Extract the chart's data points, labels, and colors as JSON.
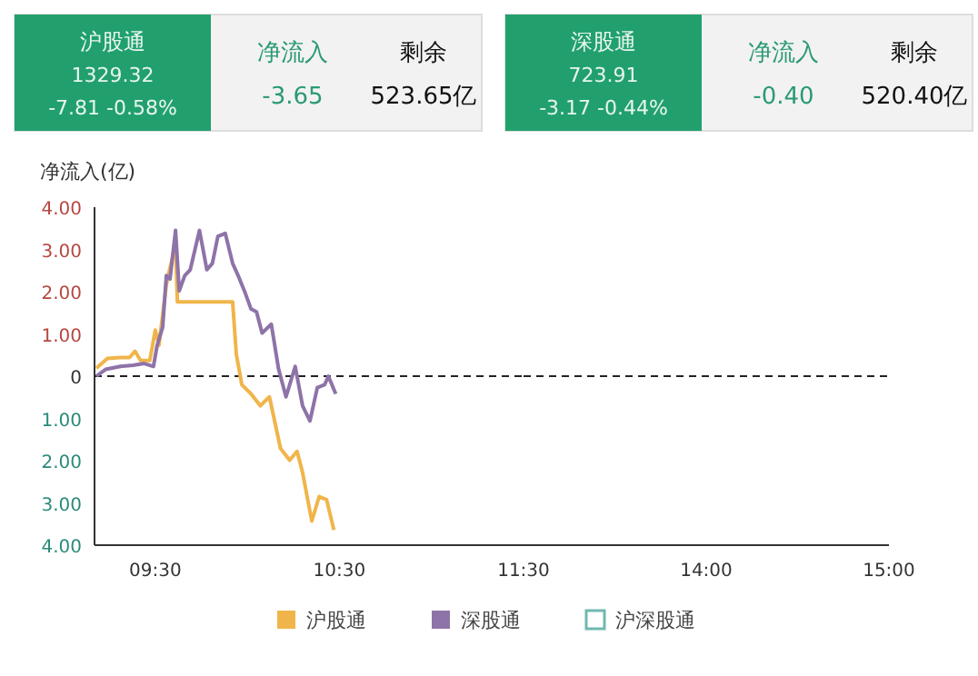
{
  "chart_data": [
    {
      "type": "other",
      "title": "沪股通",
      "annotations": [
        "1329.32",
        "-7.81 -0.58%",
        "净流入",
        "-3.65",
        "剩余",
        "523.65亿"
      ]
    },
    {
      "type": "other",
      "title": "深股通",
      "annotations": [
        "723.91",
        "-3.17 -0.44%",
        "净流入",
        "-0.40",
        "剩余",
        "520.40亿"
      ]
    },
    {
      "type": "line",
      "ylabel": "净流入(亿)",
      "legend": "bottom",
      "grid": false,
      "xlim": [
        9.17,
        11.5
      ],
      "xticks": [
        {
          "value": 9.5,
          "label": "09:30"
        },
        {
          "value": 10.5,
          "label": "10:30"
        },
        {
          "value": 11.5,
          "label": "11:30"
        }
      ],
      "ylim": [
        -4,
        4
      ],
      "yticks": [
        {
          "value": 4,
          "label": "4.00"
        },
        {
          "value": 3,
          "label": "3.00"
        },
        {
          "value": 2,
          "label": "2.00"
        },
        {
          "value": 1,
          "label": "1.00"
        },
        0,
        {
          "value": -1,
          "label": "1.00"
        },
        {
          "value": -2,
          "label": "2.00"
        },
        {
          "value": -3,
          "label": "3.00"
        },
        {
          "value": -4,
          "label": "4.00"
        }
      ],
      "ref_lines": [
        {
          "axis": "y",
          "value": 0,
          "color": "#222222",
          "line_style": "dashed"
        }
      ],
      "series": [
        {
          "name": "沪股通",
          "color": "#f0b54a",
          "x": [
            9.18,
            9.24,
            9.31,
            9.36,
            9.39,
            9.42,
            9.47,
            9.5,
            9.52,
            9.56,
            9.57,
            9.61,
            9.62,
            9.92,
            9.94,
            9.97,
            10.02,
            10.07,
            10.12,
            10.18,
            10.23,
            10.27,
            10.3,
            10.35,
            10.39,
            10.43,
            10.47
          ],
          "values": [
            0.19,
            0.42,
            0.44,
            0.44,
            0.59,
            0.37,
            0.37,
            1.09,
            0.73,
            2.16,
            2.38,
            3.1,
            1.76,
            1.76,
            0.52,
            -0.2,
            -0.42,
            -0.7,
            -0.49,
            -1.71,
            -1.99,
            -1.78,
            -2.28,
            -3.43,
            -2.85,
            -2.92,
            -3.64
          ]
        },
        {
          "name": "深股通",
          "color": "#8e73a8",
          "x": [
            9.18,
            9.23,
            9.31,
            9.38,
            9.44,
            9.49,
            9.51,
            9.54,
            9.56,
            9.58,
            9.61,
            9.63,
            9.66,
            9.69,
            9.74,
            9.78,
            9.81,
            9.84,
            9.88,
            9.92,
            9.95,
            9.99,
            10.02,
            10.05,
            10.08,
            10.13,
            10.17,
            10.21,
            10.26,
            10.3,
            10.34,
            10.38,
            10.42,
            10.44,
            10.48
          ],
          "values": [
            0,
            0.16,
            0.23,
            0.26,
            0.3,
            0.23,
            0.73,
            1.16,
            2.38,
            2.3,
            3.45,
            2.02,
            2.38,
            2.52,
            3.45,
            2.52,
            2.67,
            3.31,
            3.38,
            2.67,
            2.38,
            1.95,
            1.59,
            1.52,
            1.02,
            1.23,
            0.16,
            -0.49,
            0.23,
            -0.7,
            -1.06,
            -0.27,
            -0.2,
            0,
            -0.42
          ]
        },
        {
          "name": "沪深股通",
          "color": "#6fb8b0"
        }
      ]
    },
    {
      "type": "line",
      "tick_labels": "x",
      "xlim": [
        13,
        15
      ],
      "xticks": [
        {
          "value": 14,
          "label": "14:00"
        },
        {
          "value": 15,
          "label": "15:00"
        }
      ],
      "ylim": [
        -4,
        4
      ],
      "ref_lines": [
        {
          "axis": "y",
          "value": 0,
          "color": "#222222",
          "line_style": "dashed"
        }
      ]
    }
  ]
}
